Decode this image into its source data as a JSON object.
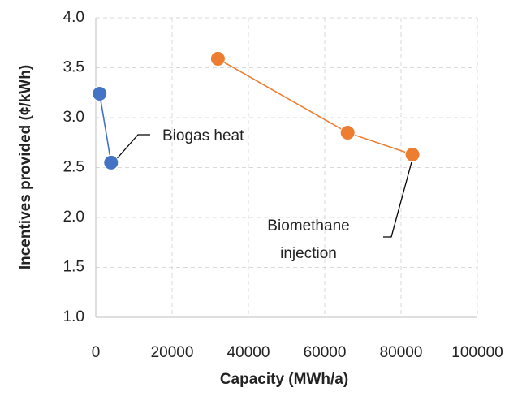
{
  "chart_data": {
    "type": "scatter-line",
    "x_label": "Capacity (MWh/a)",
    "y_label": "Incentives provided (¢/kWh)",
    "xlim": [
      0,
      100000
    ],
    "xticks": [
      0,
      20000,
      40000,
      60000,
      80000,
      100000
    ],
    "ylim": [
      1,
      4
    ],
    "yticks": [
      {
        "value": 1,
        "label": "1.0"
      },
      1.5,
      {
        "value": 2,
        "label": "2.0"
      },
      2.5,
      {
        "value": 3,
        "label": "3.0"
      },
      3.5,
      {
        "value": 4,
        "label": "4.0"
      }
    ],
    "grid": true,
    "series": [
      {
        "name": "Biogas heat",
        "color": "#4472c4",
        "x": [
          1000,
          4000
        ],
        "values": [
          3.24,
          2.55
        ]
      },
      {
        "name": "Biomethane injection",
        "color": "#ed7d31",
        "x": [
          32000,
          66000,
          83000
        ],
        "values": [
          3.59,
          2.85,
          2.63
        ]
      }
    ]
  }
}
